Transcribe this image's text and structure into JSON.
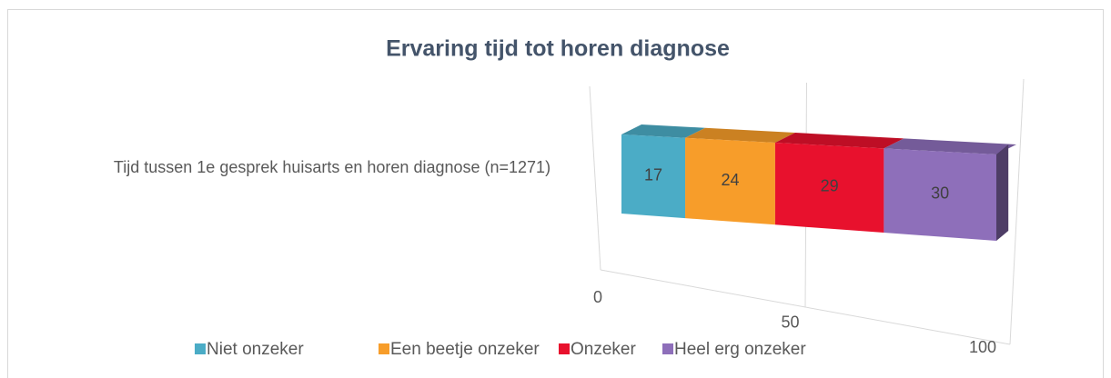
{
  "chart_data": {
    "type": "bar3d-stacked-horizontal",
    "title": "Ervaring tijd tot horen diagnose",
    "categories": [
      "Tijd tussen 1e gesprek huisarts en horen diagnose (n=1271)"
    ],
    "series": [
      {
        "name": "Niet onzeker",
        "color": "#4bacc6",
        "values": [
          17
        ]
      },
      {
        "name": "Een beetje onzeker",
        "color": "#f79d2a",
        "values": [
          24
        ]
      },
      {
        "name": "Onzeker",
        "color": "#e8112d",
        "values": [
          29
        ]
      },
      {
        "name": "Heel erg onzeker",
        "color": "#8e6fba",
        "values": [
          30
        ]
      }
    ],
    "xlim": [
      0,
      100
    ],
    "xticks": [
      0,
      50,
      100
    ],
    "grid": true,
    "legend": "bottom"
  }
}
